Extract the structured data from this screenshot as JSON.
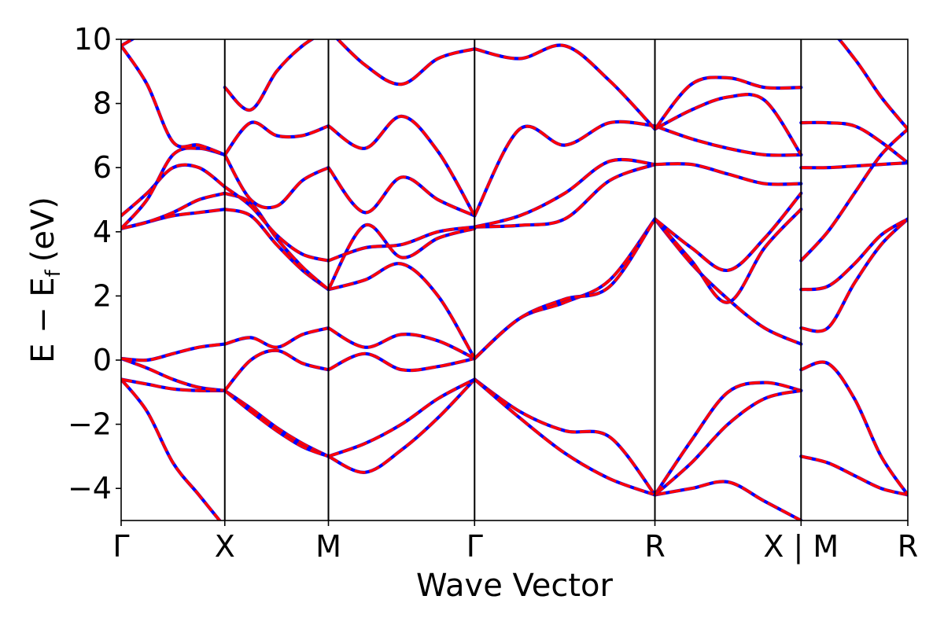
{
  "chart_data": {
    "type": "line",
    "xlabel": "Wave Vector",
    "ylabel": "E − E",
    "ylabel_sub": "f",
    "ylabel_unit": "(eV)",
    "ylim": [
      -5,
      10
    ],
    "yticks": [
      -4,
      -2,
      0,
      2,
      4,
      6,
      8,
      10
    ],
    "ytick_labels": [
      "−4",
      "−2",
      "0",
      "2",
      "4",
      "6",
      "8",
      "10"
    ],
    "xlim": [
      0,
      7.59
    ],
    "xticks": [
      {
        "x": 0,
        "label": "Γ"
      },
      {
        "x": 1.0,
        "label": "X"
      },
      {
        "x": 2.0,
        "label": "M"
      },
      {
        "x": 3.41,
        "label": "Γ"
      },
      {
        "x": 5.15,
        "label": "R"
      },
      {
        "x": 6.56,
        "label": "X | M"
      },
      {
        "x": 7.59,
        "label": "R"
      }
    ],
    "styles": {
      "ref_color": "#0000ff",
      "overlay_color": "#ff0000"
    },
    "segments": [
      {
        "x0": 0,
        "x1": 1.0,
        "bands": [
          [
            -0.6,
            -1.6,
            -3.2,
            -4.2,
            -5.2
          ],
          [
            -0.6,
            -0.75,
            -0.9,
            -0.95,
            -0.95
          ],
          [
            0.05,
            -0.25,
            -0.6,
            -0.85,
            -0.95
          ],
          [
            0.05,
            0.0,
            0.2,
            0.4,
            0.5
          ],
          [
            4.1,
            4.3,
            4.5,
            4.6,
            4.7
          ],
          [
            4.1,
            4.3,
            4.6,
            5.0,
            5.2
          ],
          [
            4.5,
            5.2,
            6.0,
            6.0,
            5.4
          ],
          [
            4.1,
            5.0,
            6.4,
            6.6,
            6.4
          ],
          [
            9.8,
            8.6,
            6.8,
            6.7,
            6.4
          ],
          [
            9.8,
            10.3,
            11,
            11,
            11
          ]
        ]
      },
      {
        "x0": 1.0,
        "x1": 2.0,
        "bands": [
          [
            -0.95,
            -1.5,
            -2.1,
            -2.6,
            -3.0
          ],
          [
            -0.95,
            -1.6,
            -2.2,
            -2.7,
            -3.0
          ],
          [
            -0.95,
            0.0,
            0.3,
            -0.1,
            -0.3
          ],
          [
            0.5,
            0.7,
            0.4,
            0.8,
            1.0
          ],
          [
            4.7,
            4.5,
            3.6,
            2.8,
            2.2
          ],
          [
            5.2,
            4.9,
            3.8,
            2.9,
            2.2
          ],
          [
            5.4,
            4.8,
            3.9,
            3.3,
            3.1
          ],
          [
            6.4,
            5.0,
            4.8,
            5.6,
            6.0
          ],
          [
            6.4,
            7.4,
            7.0,
            7.0,
            7.3
          ],
          [
            8.5,
            7.8,
            9.0,
            9.8,
            10.3
          ]
        ]
      },
      {
        "x0": 2.0,
        "x1": 3.41,
        "bands": [
          [
            -3.0,
            -3.5,
            -2.8,
            -1.8,
            -0.6
          ],
          [
            -3.0,
            -2.6,
            -2.0,
            -1.2,
            -0.6
          ],
          [
            -0.3,
            0.2,
            -0.3,
            -0.2,
            0.05
          ],
          [
            1.0,
            0.4,
            0.8,
            0.6,
            0.05
          ],
          [
            2.2,
            2.5,
            3.0,
            2.0,
            0.05
          ],
          [
            2.2,
            4.2,
            3.2,
            3.8,
            4.1
          ],
          [
            3.1,
            3.5,
            3.6,
            4.0,
            4.15
          ],
          [
            6.0,
            4.6,
            5.7,
            5.0,
            4.5
          ],
          [
            7.3,
            6.6,
            7.6,
            6.5,
            4.5
          ],
          [
            10.3,
            9.2,
            8.6,
            9.4,
            9.7
          ]
        ]
      },
      {
        "x0": 3.41,
        "x1": 5.15,
        "bands": [
          [
            -0.6,
            -1.6,
            -2.2,
            -2.4,
            -4.2
          ],
          [
            -0.6,
            -1.8,
            -2.9,
            -3.7,
            -4.2
          ],
          [
            0.05,
            1.3,
            1.8,
            2.5,
            4.4
          ],
          [
            0.05,
            1.3,
            1.9,
            2.3,
            4.4
          ],
          [
            4.15,
            4.2,
            4.4,
            5.6,
            6.1
          ],
          [
            4.15,
            4.5,
            5.2,
            6.2,
            6.1
          ],
          [
            4.5,
            7.2,
            6.7,
            7.4,
            7.3
          ],
          [
            9.7,
            9.4,
            9.8,
            8.7,
            7.2
          ]
        ]
      },
      {
        "x0": 5.15,
        "x1": 6.56,
        "bands": [
          [
            -4.2,
            -4.0,
            -3.8,
            -4.4,
            -5.0
          ],
          [
            -4.2,
            -2.5,
            -1.0,
            -0.7,
            -0.95
          ],
          [
            -4.2,
            -3.2,
            -2.0,
            -1.2,
            -0.95
          ],
          [
            4.4,
            3.0,
            1.9,
            1.0,
            0.5
          ],
          [
            4.4,
            3.1,
            1.8,
            3.5,
            4.7
          ],
          [
            4.4,
            3.5,
            2.8,
            3.8,
            5.2
          ],
          [
            6.1,
            6.1,
            5.8,
            5.5,
            5.5
          ],
          [
            7.3,
            6.9,
            6.6,
            6.4,
            6.4
          ],
          [
            7.2,
            7.8,
            8.2,
            8.1,
            6.4
          ],
          [
            7.2,
            8.6,
            8.8,
            8.5,
            8.5
          ]
        ]
      },
      {
        "x0": 6.56,
        "x1": 7.59,
        "bands": [
          [
            -3.0,
            -3.2,
            -3.6,
            -4.0,
            -4.2
          ],
          [
            -0.3,
            -0.1,
            -1.2,
            -3.0,
            -4.2
          ],
          [
            1.0,
            1.0,
            2.4,
            3.6,
            4.4
          ],
          [
            2.2,
            2.3,
            3.0,
            3.9,
            4.4
          ],
          [
            3.1,
            4.0,
            5.2,
            6.4,
            7.2
          ],
          [
            6.0,
            6.0,
            6.05,
            6.1,
            6.15
          ],
          [
            7.4,
            7.4,
            7.3,
            6.8,
            6.15
          ],
          [
            10.2,
            10.3,
            9.4,
            8.2,
            7.2
          ]
        ]
      }
    ]
  }
}
